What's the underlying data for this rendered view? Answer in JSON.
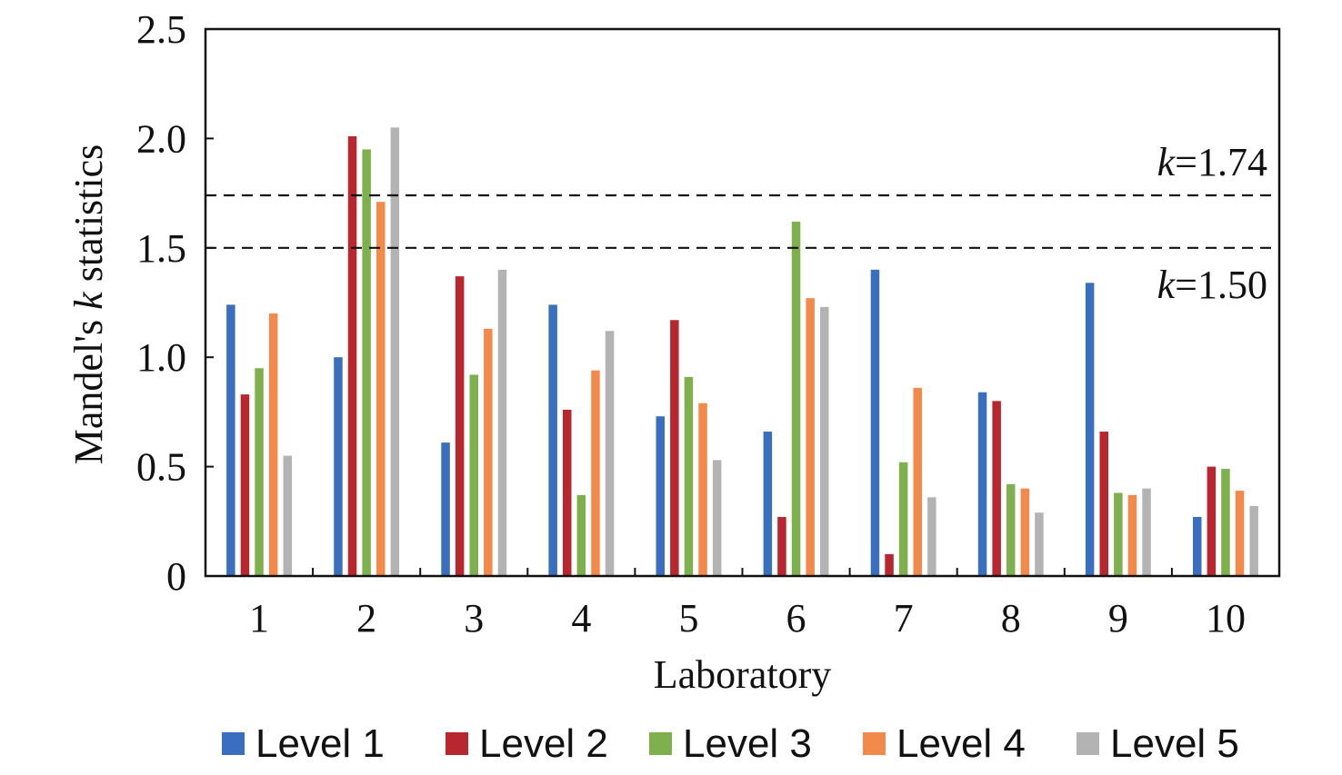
{
  "chart_data": {
    "type": "bar",
    "xlabel": "Laboratory",
    "ylabel": "Mandel's k statistics",
    "ylabel_parts": [
      "Mandel's ",
      "k",
      " statistics"
    ],
    "ylim": [
      0,
      2.5
    ],
    "yticks": [
      "0",
      "0.5",
      "1.0",
      "1.5",
      "2.0",
      "2.5"
    ],
    "categories": [
      "1",
      "2",
      "3",
      "4",
      "5",
      "6",
      "7",
      "8",
      "9",
      "10"
    ],
    "series": [
      {
        "name": "Level 1",
        "color": "#3A6FBF",
        "values": [
          1.24,
          1.0,
          0.61,
          1.24,
          0.73,
          0.66,
          1.4,
          0.84,
          1.34,
          0.27
        ]
      },
      {
        "name": "Level 2",
        "color": "#B8262E",
        "values": [
          0.83,
          2.01,
          1.37,
          0.76,
          1.17,
          0.27,
          0.1,
          0.8,
          0.66,
          0.5
        ]
      },
      {
        "name": "Level 3",
        "color": "#7FB04E",
        "values": [
          0.95,
          1.95,
          0.92,
          0.37,
          0.91,
          1.62,
          0.52,
          0.42,
          0.38,
          0.49
        ]
      },
      {
        "name": "Level 4",
        "color": "#F28A4C",
        "values": [
          1.2,
          1.71,
          1.13,
          0.94,
          0.79,
          1.27,
          0.86,
          0.4,
          0.37,
          0.39
        ]
      },
      {
        "name": "Level 5",
        "color": "#B3B3B3",
        "values": [
          0.55,
          2.05,
          1.4,
          1.12,
          0.53,
          1.23,
          0.36,
          0.29,
          0.4,
          0.32
        ]
      }
    ],
    "reference_lines": [
      {
        "value": 1.74,
        "symbol": "k",
        "text": "=1.74"
      },
      {
        "value": 1.5,
        "symbol": "k",
        "text": "=1.50"
      }
    ],
    "grid": false,
    "legend": "bottom"
  }
}
